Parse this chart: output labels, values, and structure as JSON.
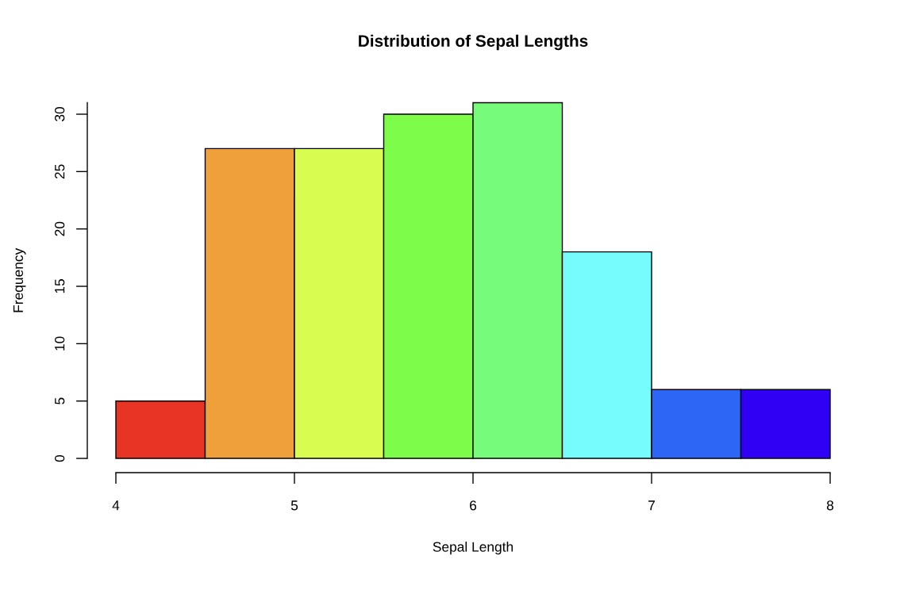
{
  "chart_data": {
    "type": "histogram",
    "title": "Distribution of Sepal Lengths",
    "xlabel": "Sepal Length",
    "ylabel": "Frequency",
    "bins": [
      4,
      4.5,
      5,
      5.5,
      6,
      6.5,
      7,
      7.5,
      8
    ],
    "values": [
      5,
      27,
      27,
      30,
      31,
      18,
      6,
      6
    ],
    "colors": [
      "#e83424",
      "#f0a03a",
      "#d8fc50",
      "#7efc4a",
      "#76fc7a",
      "#76fcfc",
      "#2d66f4",
      "#3000f4"
    ],
    "xlim": [
      4,
      8
    ],
    "ylim": [
      0,
      31
    ],
    "xticks": [
      4,
      5,
      6,
      7,
      8
    ],
    "yticks": [
      0,
      5,
      10,
      15,
      20,
      25,
      30
    ],
    "grid": false
  }
}
